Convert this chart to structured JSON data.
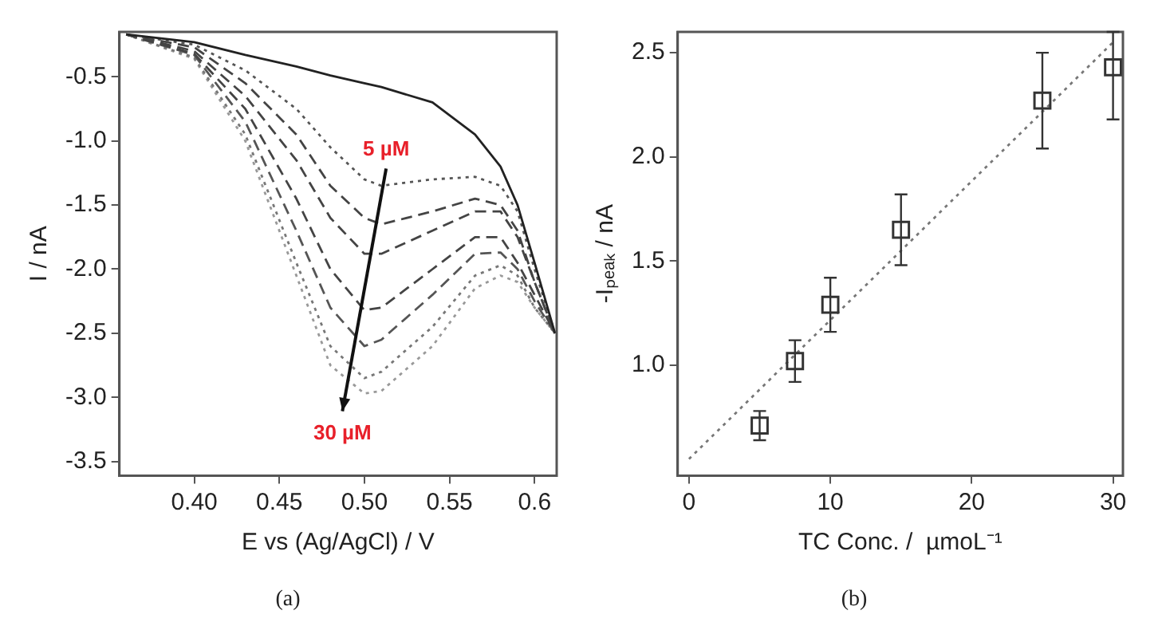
{
  "chart_data": [
    {
      "type": "line",
      "title": "(a)",
      "xlabel": "E vs (Ag/AgCl) / V",
      "ylabel": "I / nA",
      "x": [
        0.36,
        0.4,
        0.43,
        0.46,
        0.48,
        0.5,
        0.51,
        0.54,
        0.565,
        0.58,
        0.59,
        0.6,
        0.612
      ],
      "series": [
        {
          "color": "#222222",
          "line_style": "solid",
          "values": [
            -0.17,
            -0.23,
            -0.33,
            -0.42,
            -0.49,
            -0.55,
            -0.58,
            -0.7,
            -0.95,
            -1.2,
            -1.5,
            -1.95,
            -2.5
          ]
        },
        {
          "color": "#555555",
          "line_style": "dotted",
          "values": [
            -0.17,
            -0.25,
            -0.45,
            -0.75,
            -1.05,
            -1.3,
            -1.35,
            -1.3,
            -1.28,
            -1.35,
            -1.55,
            -2.0,
            -2.5
          ]
        },
        {
          "color": "#444444",
          "line_style": "dashed",
          "values": [
            -0.17,
            -0.27,
            -0.55,
            -0.95,
            -1.35,
            -1.6,
            -1.65,
            -1.55,
            -1.45,
            -1.5,
            -1.7,
            -2.1,
            -2.5
          ]
        },
        {
          "color": "#444444",
          "line_style": "dashed",
          "values": [
            -0.17,
            -0.3,
            -0.65,
            -1.15,
            -1.6,
            -1.88,
            -1.88,
            -1.7,
            -1.55,
            -1.55,
            -1.75,
            -2.1,
            -2.5
          ]
        },
        {
          "color": "#444444",
          "line_style": "dashed",
          "values": [
            -0.17,
            -0.32,
            -0.75,
            -1.45,
            -2.0,
            -2.32,
            -2.3,
            -2.0,
            -1.75,
            -1.75,
            -1.95,
            -2.2,
            -2.5
          ]
        },
        {
          "color": "#555555",
          "line_style": "dashed",
          "values": [
            -0.17,
            -0.33,
            -0.85,
            -1.7,
            -2.3,
            -2.6,
            -2.55,
            -2.2,
            -1.88,
            -1.87,
            -2.0,
            -2.25,
            -2.5
          ]
        },
        {
          "color": "#777777",
          "line_style": "dotted",
          "values": [
            -0.17,
            -0.35,
            -0.95,
            -1.95,
            -2.6,
            -2.85,
            -2.8,
            -2.45,
            -2.05,
            -1.97,
            -2.05,
            -2.3,
            -2.5
          ]
        },
        {
          "color": "#999999",
          "line_style": "dotted",
          "values": [
            -0.17,
            -0.36,
            -1.0,
            -2.05,
            -2.75,
            -2.97,
            -2.95,
            -2.6,
            -2.15,
            -2.05,
            -2.1,
            -2.3,
            -2.5
          ]
        }
      ],
      "xlim": [
        0.356,
        0.613
      ],
      "xticks": [
        {
          "value": 0.4,
          "label": "0.40"
        },
        0.45,
        {
          "value": 0.5,
          "label": "0.50"
        },
        0.55,
        0.6
      ],
      "ylim": [
        -3.61,
        -0.15
      ],
      "yticks": [
        -0.5,
        {
          "value": -1,
          "label": "-1.0"
        },
        -1.5,
        {
          "value": -2,
          "label": "-2.0"
        },
        -2.5,
        {
          "value": -3,
          "label": "-3.0"
        },
        -3.5
      ],
      "annotations": [
        "5 µM",
        "30 µM"
      ]
    },
    {
      "type": "scatter",
      "title": "(b)",
      "xlabel": "TC Conc. /  µmoL⁻¹",
      "ylabel": "-Iₚₑₐₖ / nA",
      "series": [
        {
          "marker": "square",
          "color": "#333333",
          "x": [
            5,
            7.5,
            10,
            15,
            25,
            30
          ],
          "values": [
            0.71,
            1.02,
            1.29,
            1.65,
            2.27,
            2.43
          ],
          "errors": [
            0.07,
            0.1,
            0.13,
            0.17,
            0.23,
            [
              2.18,
              2.6
            ]
          ]
        },
        {
          "type": "line",
          "color": "#777777",
          "line_style": "dotted",
          "x": [
            0,
            30
          ],
          "values": [
            0.55,
            2.55
          ]
        }
      ],
      "xlim": [
        -0.8,
        30.7
      ],
      "xticks": [
        0,
        10,
        20,
        30
      ],
      "ylim": [
        0.47,
        2.6
      ],
      "yticks": [
        {
          "value": 1,
          "label": "1.0"
        },
        1.5,
        {
          "value": 2,
          "label": "2.0"
        },
        2.5
      ]
    }
  ]
}
